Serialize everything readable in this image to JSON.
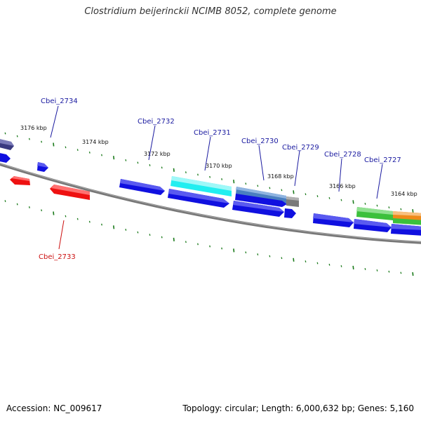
{
  "header": {
    "title": "Clostridium beijerinckii NCIMB 8052, complete genome"
  },
  "footer": {
    "accession": "Accession: NC_009617",
    "summary": "Topology: circular; Length: 6,000,632 bp; Genes: 5,160"
  },
  "colors": {
    "backbone": "#808080",
    "tick": "#1a7a1a",
    "cds_blue": "#1010e0",
    "cds_red": "#ee1111",
    "cyan": "#22eef0",
    "steelblue": "#4a7fc0",
    "gray": "#7a7a7a",
    "green": "#3cc03c",
    "orange": "#ee8a1a",
    "navy": "#3a3a80",
    "label_blue": "#1a1aa0",
    "label_red": "#cc1111"
  },
  "kbp_labels": [
    "3176 kbp",
    "3174 kbp",
    "3172 kbp",
    "3170 kbp",
    "3168 kbp",
    "3166 kbp",
    "3164 kbp"
  ],
  "gene_labels": {
    "cbei_2734": "Cbei_2734",
    "cbei_2733": "Cbei_2733",
    "cbei_2732": "Cbei_2732",
    "cbei_2731": "Cbei_2731",
    "cbei_2730": "Cbei_2730",
    "cbei_2729": "Cbei_2729",
    "cbei_2728": "Cbei_2728",
    "cbei_2727": "Cbei_2727"
  }
}
